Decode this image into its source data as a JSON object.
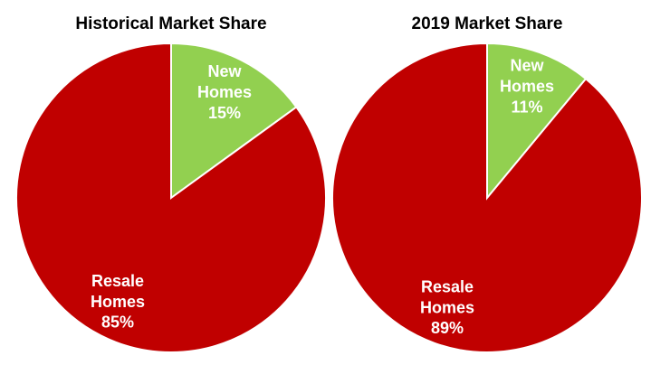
{
  "chart_data": [
    {
      "type": "pie",
      "title": "Historical Market Share",
      "categories": [
        "New Homes",
        "Resale Homes"
      ],
      "values": [
        15,
        85
      ],
      "value_labels": [
        "15%",
        "85%"
      ],
      "colors": [
        "#92d050",
        "#c00000"
      ]
    },
    {
      "type": "pie",
      "title": "2019 Market Share",
      "categories": [
        "New Homes",
        "Resale Homes"
      ],
      "values": [
        11,
        89
      ],
      "value_labels": [
        "11%",
        "89%"
      ],
      "colors": [
        "#92d050",
        "#c00000"
      ]
    }
  ]
}
